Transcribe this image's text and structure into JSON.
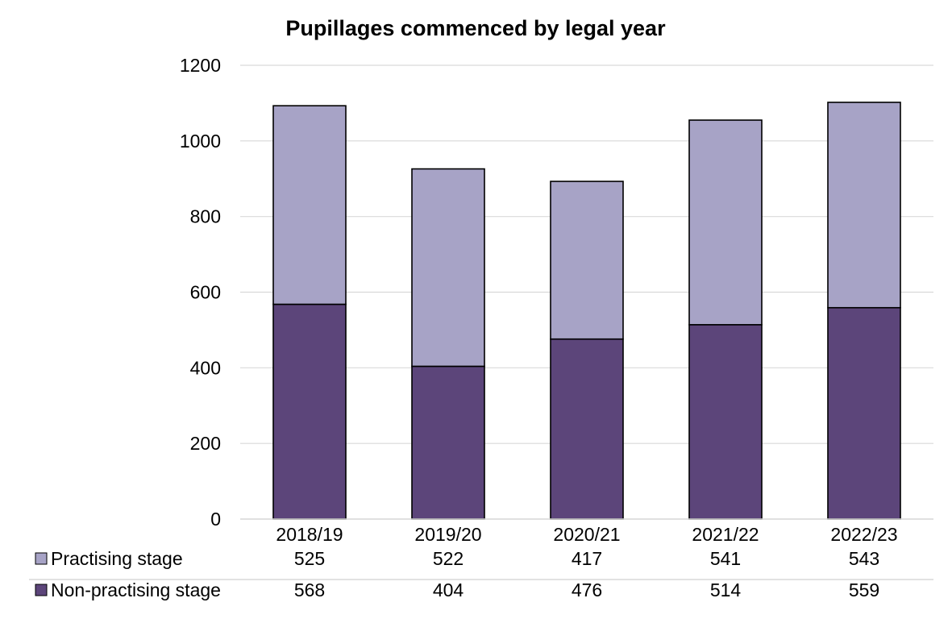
{
  "chart_data": {
    "type": "bar",
    "stacked": true,
    "title": "Pupillages commenced by legal year",
    "xlabel": "",
    "ylabel": "",
    "categories": [
      "2018/19",
      "2019/20",
      "2020/21",
      "2021/22",
      "2022/23"
    ],
    "ylim": [
      0,
      1200
    ],
    "yticks": [
      0,
      200,
      400,
      600,
      800,
      1000,
      1200
    ],
    "grid": true,
    "legend": "data-table-below",
    "series": [
      {
        "name": "Non-practising stage",
        "values": [
          568,
          404,
          476,
          514,
          559
        ],
        "color": "#5c457a"
      },
      {
        "name": "Practising stage",
        "values": [
          525,
          522,
          417,
          541,
          543
        ],
        "color": "#a7a3c6"
      }
    ],
    "table_rows_order": [
      "Practising stage",
      "Non-practising stage"
    ]
  }
}
